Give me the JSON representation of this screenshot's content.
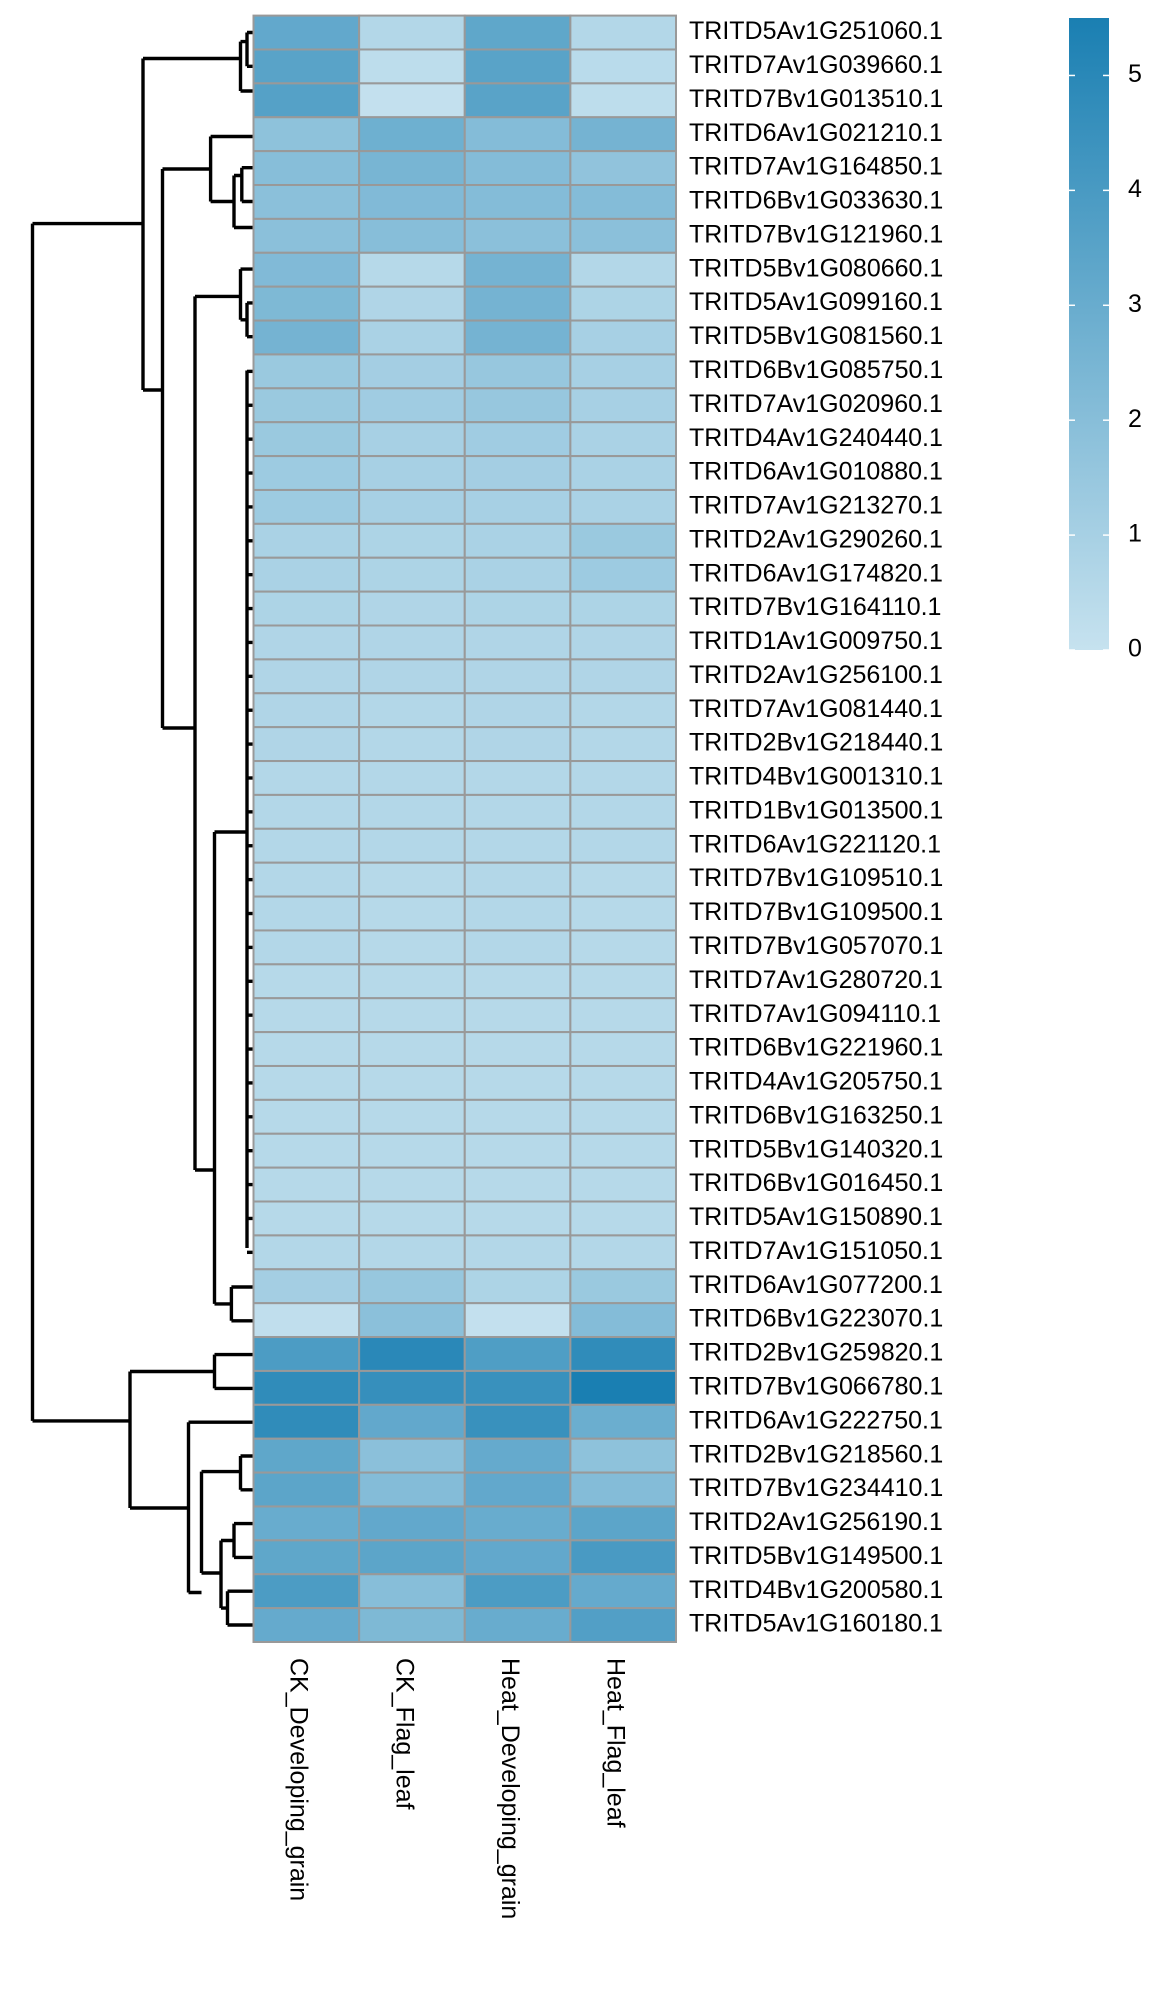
{
  "chart_data": {
    "type": "heatmap",
    "rows": [
      "TRITD5Av1G251060.1",
      "TRITD7Av1G039660.1",
      "TRITD7Bv1G013510.1",
      "TRITD6Av1G021210.1",
      "TRITD7Av1G164850.1",
      "TRITD6Bv1G033630.1",
      "TRITD7Bv1G121960.1",
      "TRITD5Bv1G080660.1",
      "TRITD5Av1G099160.1",
      "TRITD5Bv1G081560.1",
      "TRITD6Bv1G085750.1",
      "TRITD7Av1G020960.1",
      "TRITD4Av1G240440.1",
      "TRITD6Av1G010880.1",
      "TRITD7Av1G213270.1",
      "TRITD2Av1G290260.1",
      "TRITD6Av1G174820.1",
      "TRITD7Bv1G164110.1",
      "TRITD1Av1G009750.1",
      "TRITD2Av1G256100.1",
      "TRITD7Av1G081440.1",
      "TRITD2Bv1G218440.1",
      "TRITD4Bv1G001310.1",
      "TRITD1Bv1G013500.1",
      "TRITD6Av1G221120.1",
      "TRITD7Bv1G109510.1",
      "TRITD7Bv1G109500.1",
      "TRITD7Bv1G057070.1",
      "TRITD7Av1G280720.1",
      "TRITD7Av1G094110.1",
      "TRITD6Bv1G221960.1",
      "TRITD4Av1G205750.1",
      "TRITD6Bv1G163250.1",
      "TRITD5Bv1G140320.1",
      "TRITD6Bv1G016450.1",
      "TRITD5Av1G150890.1",
      "TRITD7Av1G151050.1",
      "TRITD6Av1G077200.1",
      "TRITD6Bv1G223070.1",
      "TRITD2Bv1G259820.1",
      "TRITD7Bv1G066780.1",
      "TRITD6Av1G222750.1",
      "TRITD2Bv1G218560.1",
      "TRITD7Bv1G234410.1",
      "TRITD2Av1G256190.1",
      "TRITD5Bv1G149500.1",
      "TRITD4Bv1G200580.1",
      "TRITD5Av1G160180.1"
    ],
    "columns": [
      "CK_Developing_grain",
      "CK_Flag_leaf",
      "Heat_Developing_grain",
      "Heat_Flag_leaf"
    ],
    "values": [
      [
        3.2,
        0.6,
        3.3,
        0.6
      ],
      [
        3.5,
        0.3,
        3.5,
        0.4
      ],
      [
        3.6,
        0.1,
        3.5,
        0.3
      ],
      [
        1.8,
        2.8,
        2.1,
        2.6
      ],
      [
        2.0,
        2.5,
        2.1,
        1.7
      ],
      [
        1.9,
        2.2,
        2.1,
        2.1
      ],
      [
        1.9,
        2.0,
        1.9,
        1.9
      ],
      [
        2.2,
        0.5,
        2.6,
        0.6
      ],
      [
        2.3,
        0.7,
        2.6,
        0.8
      ],
      [
        2.6,
        0.9,
        2.6,
        1.0
      ],
      [
        1.4,
        1.1,
        1.5,
        1.0
      ],
      [
        1.4,
        1.2,
        1.5,
        1.0
      ],
      [
        1.4,
        1.0,
        1.2,
        0.9
      ],
      [
        1.3,
        1.0,
        1.1,
        0.9
      ],
      [
        1.3,
        1.0,
        1.0,
        0.9
      ],
      [
        0.9,
        0.8,
        0.9,
        1.4
      ],
      [
        0.9,
        0.8,
        0.9,
        1.3
      ],
      [
        0.8,
        0.7,
        0.8,
        0.8
      ],
      [
        0.7,
        0.7,
        0.7,
        0.7
      ],
      [
        0.7,
        0.7,
        0.7,
        0.7
      ],
      [
        0.7,
        0.6,
        0.7,
        0.6
      ],
      [
        0.7,
        0.6,
        0.7,
        0.6
      ],
      [
        0.6,
        0.6,
        0.6,
        0.6
      ],
      [
        0.6,
        0.6,
        0.6,
        0.6
      ],
      [
        0.6,
        0.6,
        0.6,
        0.6
      ],
      [
        0.6,
        0.5,
        0.6,
        0.5
      ],
      [
        0.6,
        0.5,
        0.6,
        0.5
      ],
      [
        0.6,
        0.5,
        0.6,
        0.5
      ],
      [
        0.5,
        0.5,
        0.5,
        0.5
      ],
      [
        0.5,
        0.5,
        0.5,
        0.5
      ],
      [
        0.5,
        0.5,
        0.5,
        0.5
      ],
      [
        0.5,
        0.5,
        0.5,
        0.5
      ],
      [
        0.5,
        0.5,
        0.5,
        0.5
      ],
      [
        0.5,
        0.5,
        0.5,
        0.5
      ],
      [
        0.5,
        0.5,
        0.5,
        0.5
      ],
      [
        0.5,
        0.5,
        0.5,
        0.5
      ],
      [
        0.6,
        0.6,
        0.6,
        0.6
      ],
      [
        1.1,
        1.5,
        0.8,
        1.4
      ],
      [
        0.2,
        1.9,
        0.1,
        2.1
      ],
      [
        3.9,
        5.0,
        3.8,
        4.8
      ],
      [
        4.8,
        4.6,
        4.5,
        5.5
      ],
      [
        4.8,
        3.2,
        4.5,
        2.9
      ],
      [
        3.3,
        1.9,
        3.1,
        1.8
      ],
      [
        3.4,
        2.1,
        3.2,
        2.1
      ],
      [
        3.0,
        3.2,
        3.0,
        3.4
      ],
      [
        3.3,
        3.4,
        3.2,
        4.0
      ],
      [
        3.9,
        2.0,
        3.9,
        3.1
      ],
      [
        3.1,
        2.3,
        3.0,
        3.7
      ]
    ],
    "zlim": [
      0,
      5.5
    ],
    "zticks": [
      0,
      1,
      2,
      3,
      4,
      5
    ],
    "colors": [
      "#c6e2ef",
      "#1a7fb2"
    ],
    "cell_border": "#999999"
  }
}
